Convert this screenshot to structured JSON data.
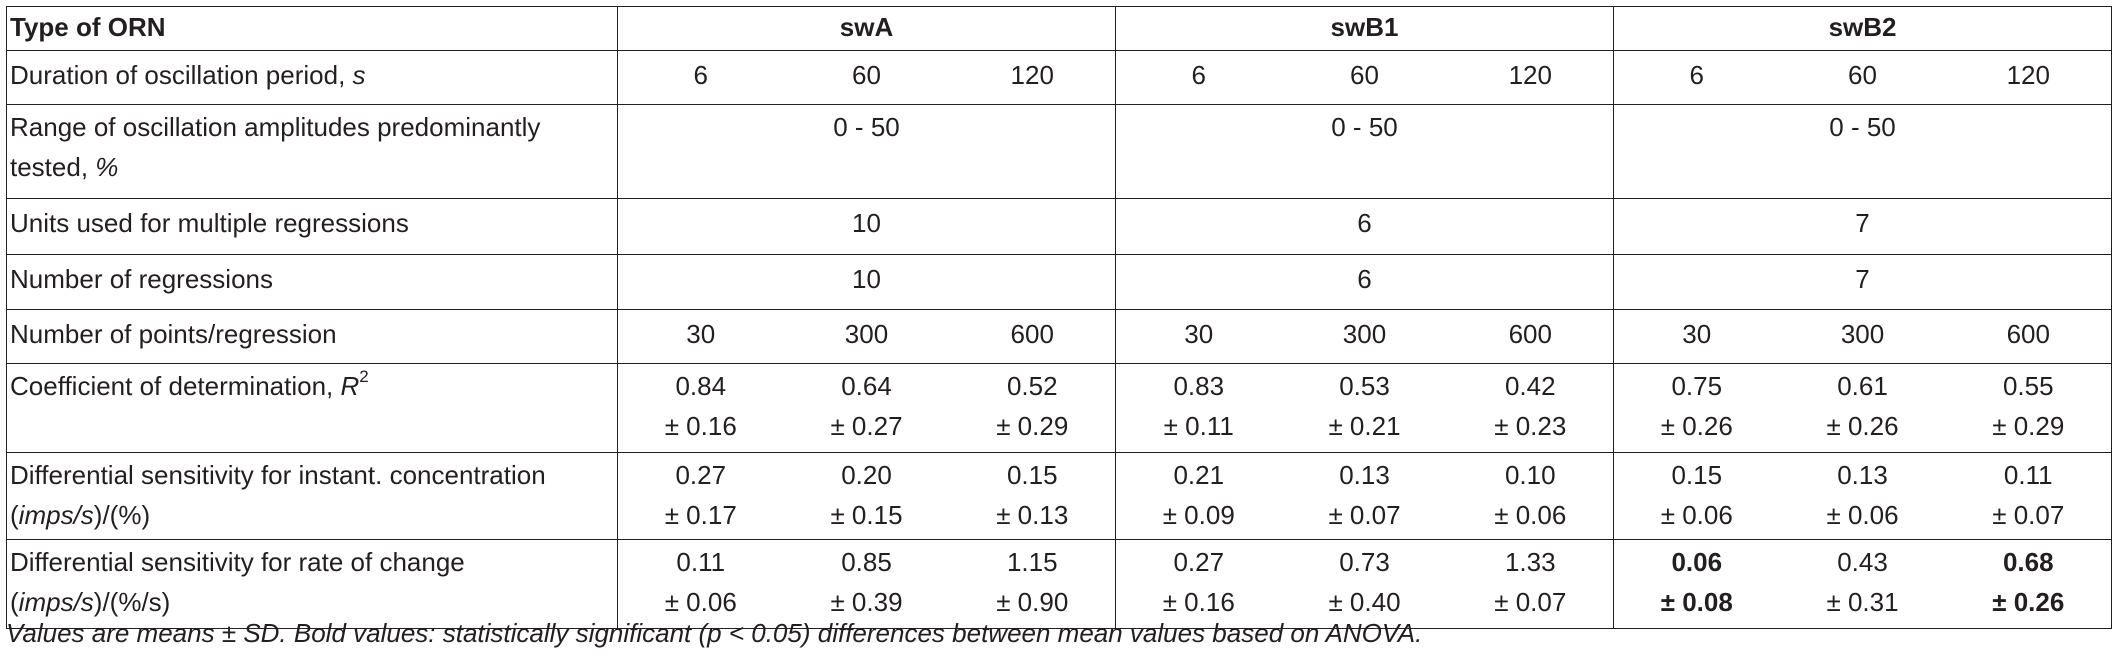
{
  "table": {
    "header": {
      "label": "Type of ORN",
      "groups": [
        "swA",
        "swB1",
        "swB2"
      ]
    },
    "rows": {
      "duration": {
        "label": "Duration of oscillation period, ",
        "label_unit": "s",
        "values": [
          "6",
          "60",
          "120",
          "6",
          "60",
          "120",
          "6",
          "60",
          "120"
        ]
      },
      "range": {
        "label_line1": "Range of oscillation amplitudes predominantly",
        "label_line2": "tested, ",
        "label_unit": "%",
        "values": [
          "0 - 50",
          "0 - 50",
          "0 - 50"
        ]
      },
      "units": {
        "label": "Units used for multiple regressions",
        "values": [
          "10",
          "6",
          "7"
        ]
      },
      "regressions": {
        "label": "Number of regressions",
        "values": [
          "10",
          "6",
          "7"
        ]
      },
      "points": {
        "label": "Number of points/regression",
        "values": [
          "30",
          "300",
          "600",
          "30",
          "300",
          "600",
          "30",
          "300",
          "600"
        ]
      },
      "r2": {
        "label": "Coefficient of determination, ",
        "label_unit": "R",
        "label_sup": "2",
        "means": [
          "0.84",
          "0.64",
          "0.52",
          "0.83",
          "0.53",
          "0.42",
          "0.75",
          "0.61",
          "0.55"
        ],
        "sds": [
          "± 0.16",
          "± 0.27",
          "± 0.29",
          "± 0.11",
          "± 0.21",
          "± 0.23",
          "± 0.26",
          "± 0.26",
          "± 0.29"
        ]
      },
      "sens_conc": {
        "label_line1": "Differential sensitivity for instant. concentration",
        "label_line2_a": "(",
        "label_line2_unit": "imps/s",
        "label_line2_b": ")/(%)",
        "means": [
          "0.27",
          "0.20",
          "0.15",
          "0.21",
          "0.13",
          "0.10",
          "0.15",
          "0.13",
          "0.11"
        ],
        "sds": [
          "± 0.17",
          "± 0.15",
          "± 0.13",
          "± 0.09",
          "± 0.07",
          "± 0.06",
          "± 0.06",
          "± 0.06",
          "± 0.07"
        ]
      },
      "sens_rate": {
        "label_line1": "Differential sensitivity for rate of change",
        "label_line2_a": "(",
        "label_line2_unit": "imps/s",
        "label_line2_b": ")/(%/s)",
        "means": [
          "0.11",
          "0.85",
          "1.15",
          "0.27",
          "0.73",
          "1.33",
          "0.06",
          "0.43",
          "0.68"
        ],
        "sds": [
          "± 0.06",
          "± 0.39",
          "± 0.90",
          "± 0.16",
          "± 0.40",
          "± 0.07",
          "± 0.08",
          "± 0.31",
          "± 0.26"
        ]
      }
    }
  },
  "footnote": "Values are means ± SD. Bold values: statistically significant (p < 0.05) differences between mean values based on ANOVA."
}
